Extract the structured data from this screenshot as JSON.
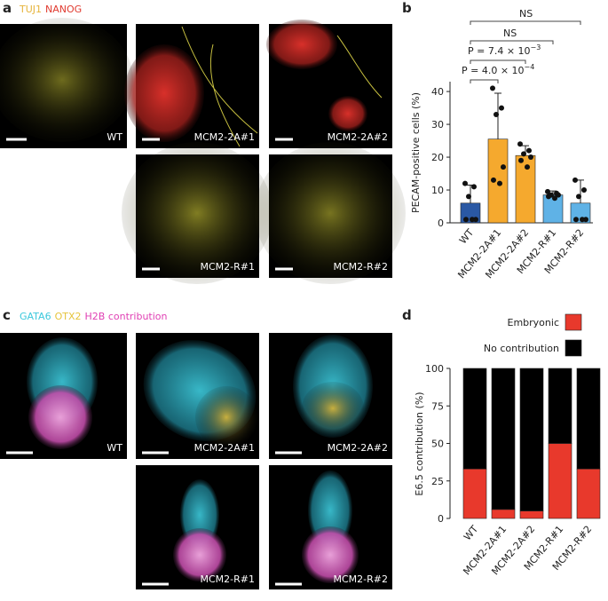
{
  "panel_letters": [
    "a",
    "b",
    "c",
    "d"
  ],
  "panel_a": {
    "stains": [
      {
        "text": "TUJ1",
        "color": "#e6b43c"
      },
      {
        "text": "NANOG",
        "color": "#e03a2f"
      }
    ],
    "images": [
      "WT",
      "MCM2-2A#1",
      "MCM2-2A#2",
      "MCM2-R#1",
      "MCM2-R#2"
    ]
  },
  "panel_c": {
    "stains": [
      {
        "text": "GATA6",
        "color": "#3cc8dc"
      },
      {
        "text": "OTX2",
        "color": "#e6c43c"
      },
      {
        "text": "H2B contribution",
        "color": "#e040b4"
      }
    ],
    "images": [
      "WT",
      "MCM2-2A#1",
      "MCM2-2A#2",
      "MCM2-R#1",
      "MCM2-R#2"
    ]
  },
  "chart_data": [
    {
      "type": "bar",
      "ylabel": "PECAM-positive cells (%)",
      "categories": [
        "WT",
        "MCM2-2A#1",
        "MCM2-2A#2",
        "MCM2-R#1",
        "MCM2-R#2"
      ],
      "values": [
        6,
        25.5,
        20.5,
        8.5,
        6
      ],
      "errors": [
        5.5,
        14,
        3,
        1.2,
        7
      ],
      "colors": [
        "#2a58a4",
        "#f5a92e",
        "#f5a92e",
        "#5fb2e6",
        "#5fb2e6"
      ],
      "points": [
        [
          12,
          11,
          8,
          1,
          1,
          1
        ],
        [
          41,
          35,
          33,
          17,
          13,
          12
        ],
        [
          24,
          22,
          21,
          20,
          19,
          17
        ],
        [
          9.5,
          9,
          8.5,
          8.5,
          8,
          7.5
        ],
        [
          13,
          10,
          8,
          1,
          1,
          1
        ]
      ],
      "ylim": [
        0,
        43
      ],
      "yticks": [
        0,
        10,
        20,
        30,
        40
      ],
      "annotations": [
        {
          "text": "P = 4.0 × 10",
          "exponent": "−4"
        },
        {
          "text": "P = 7.4 × 10",
          "exponent": "−3"
        },
        {
          "text": "NS"
        },
        {
          "text": "NS"
        }
      ]
    },
    {
      "type": "stacked_bar",
      "ylabel": "E6.5 contribution (%)",
      "categories": [
        "WT",
        "MCM2-2A#1",
        "MCM2-2A#2",
        "MCM2-R#1",
        "MCM2-R#2"
      ],
      "series": [
        {
          "name": "Embryonic",
          "color": "#e8392c",
          "values": [
            33,
            6,
            5,
            50,
            33
          ]
        },
        {
          "name": "No contribution",
          "color": "#000000",
          "values": [
            67,
            94,
            95,
            50,
            67
          ]
        }
      ],
      "ylim": [
        0,
        100
      ],
      "yticks": [
        0,
        25,
        50,
        75,
        100
      ]
    }
  ]
}
